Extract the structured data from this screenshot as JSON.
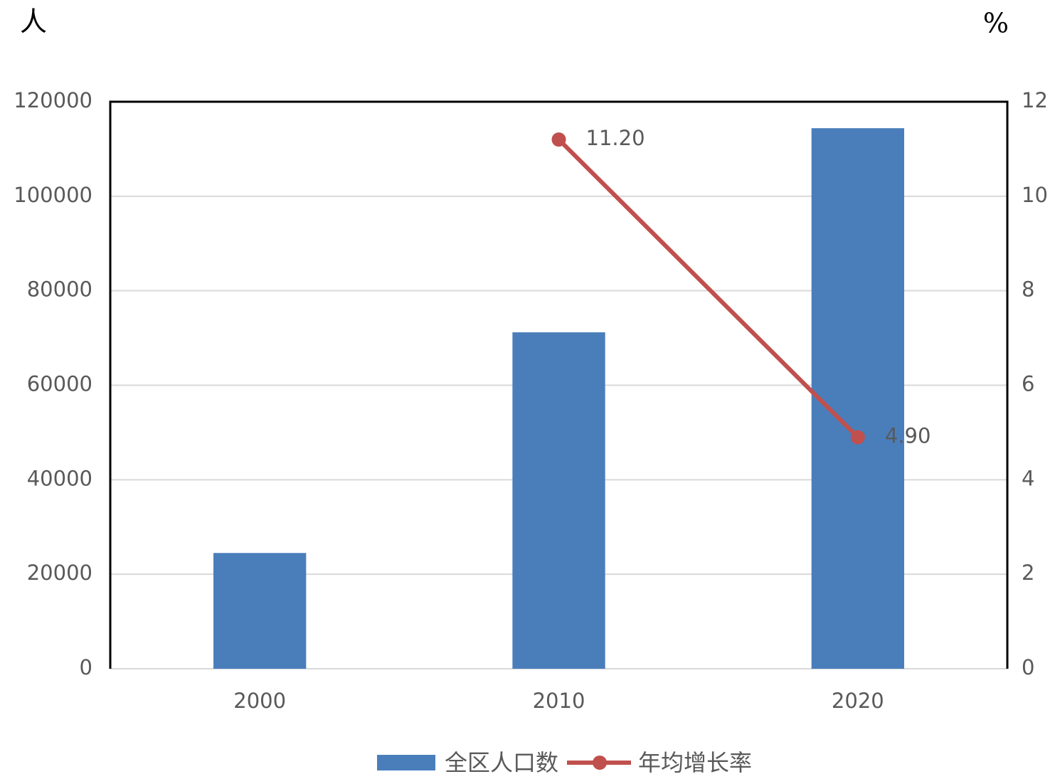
{
  "chart_data": {
    "type": "combo",
    "y_label": "人",
    "y2_label": "%",
    "categories": [
      "2000",
      "2010",
      "2020"
    ],
    "series": [
      {
        "name": "全区人口数",
        "type": "bar",
        "color": "#4a7ebb",
        "values": [
          24500,
          71200,
          114400
        ]
      },
      {
        "name": "年均增长率",
        "type": "line",
        "axis": "y2",
        "color": "#c0504d",
        "values": [
          null,
          11.2,
          4.9
        ],
        "value_labels": [
          null,
          "11.20",
          "4.90"
        ]
      }
    ],
    "ylim": [
      0,
      120000
    ],
    "yticks": [
      0,
      20000,
      40000,
      60000,
      80000,
      100000,
      120000
    ],
    "y2lim": [
      0,
      12
    ],
    "y2ticks": [
      0,
      2,
      4,
      6,
      8,
      10,
      12
    ],
    "grid": true,
    "legend": "bottom"
  }
}
